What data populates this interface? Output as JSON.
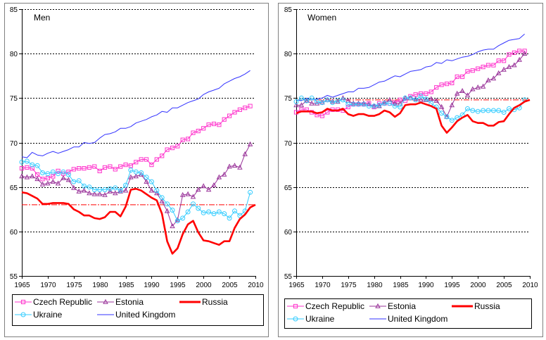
{
  "chart_data": [
    {
      "type": "line",
      "title": "Men",
      "xlabel": "",
      "ylabel": "",
      "xlim": [
        1965,
        2010
      ],
      "ylim": [
        55,
        85
      ],
      "xticks": [
        "1965",
        "1970",
        "1975",
        "1980",
        "1985",
        "1990",
        "1995",
        "2000",
        "2005",
        "2010"
      ],
      "yticks": [
        "55",
        "60",
        "65",
        "70",
        "75",
        "80",
        "85"
      ],
      "grid": "horizontal-dotted",
      "legend_position": "bottom",
      "reference_line": {
        "name": "Russia 2010 level",
        "value": 63.0
      },
      "x": [
        1965,
        1966,
        1967,
        1968,
        1969,
        1970,
        1971,
        1972,
        1973,
        1974,
        1975,
        1976,
        1977,
        1978,
        1979,
        1980,
        1981,
        1982,
        1983,
        1984,
        1985,
        1986,
        1987,
        1988,
        1989,
        1990,
        1991,
        1992,
        1993,
        1994,
        1995,
        1996,
        1997,
        1998,
        1999,
        2000,
        2001,
        2002,
        2003,
        2004,
        2005,
        2006,
        2007,
        2008,
        2009
      ],
      "series": [
        {
          "name": "Czech Republic",
          "color": "#ff33cc",
          "marker": "square",
          "values": [
            67.1,
            67.2,
            67.1,
            66.4,
            65.9,
            66.0,
            66.2,
            66.8,
            66.5,
            66.7,
            67.0,
            67.1,
            67.1,
            67.2,
            67.3,
            66.8,
            67.2,
            67.3,
            67.0,
            67.3,
            67.5,
            67.4,
            67.8,
            68.1,
            68.1,
            67.5,
            68.1,
            68.5,
            69.2,
            69.4,
            69.6,
            70.3,
            70.4,
            71.1,
            71.3,
            71.6,
            72.0,
            72.1,
            72.0,
            72.6,
            73.0,
            73.4,
            73.7,
            73.9,
            74.1
          ]
        },
        {
          "name": "Estonia",
          "color": "#993399",
          "marker": "triangle",
          "values": [
            66.2,
            66.1,
            66.2,
            65.9,
            65.3,
            65.4,
            65.6,
            65.4,
            66.0,
            65.8,
            64.9,
            64.5,
            64.6,
            64.3,
            64.2,
            64.2,
            64.1,
            64.5,
            64.3,
            64.5,
            64.6,
            66.1,
            66.2,
            66.4,
            65.6,
            64.6,
            64.3,
            63.4,
            62.3,
            60.6,
            61.3,
            64.1,
            64.2,
            63.9,
            64.7,
            65.1,
            64.7,
            65.2,
            66.1,
            66.4,
            67.3,
            67.4,
            67.2,
            68.7,
            69.8
          ]
        },
        {
          "name": "Russia",
          "color": "#ff0000",
          "marker": "none",
          "x": [
            1965,
            1966,
            1967,
            1968,
            1969,
            1970,
            1971,
            1972,
            1973,
            1974,
            1975,
            1976,
            1977,
            1978,
            1979,
            1980,
            1981,
            1982,
            1983,
            1984,
            1985,
            1986,
            1987,
            1988,
            1989,
            1990,
            1991,
            1992,
            1993,
            1994,
            1995,
            1996,
            1997,
            1998,
            1999,
            2000,
            2001,
            2002,
            2003,
            2004,
            2005,
            2006,
            2007,
            2008,
            2009,
            2010
          ],
          "values": [
            64.4,
            64.3,
            64.0,
            63.7,
            63.1,
            63.1,
            63.2,
            63.2,
            63.2,
            63.1,
            62.5,
            62.2,
            61.8,
            61.8,
            61.5,
            61.4,
            61.6,
            62.2,
            62.2,
            61.7,
            62.8,
            64.7,
            64.8,
            64.6,
            64.2,
            63.8,
            63.5,
            62.0,
            58.9,
            57.5,
            58.1,
            59.7,
            60.8,
            61.2,
            59.9,
            59.0,
            58.9,
            58.7,
            58.5,
            58.9,
            58.9,
            60.4,
            61.4,
            61.9,
            62.7,
            63.0
          ]
        },
        {
          "name": "Ukraine",
          "color": "#33ccff",
          "marker": "circle",
          "values": [
            67.8,
            67.9,
            67.5,
            67.4,
            66.6,
            66.5,
            66.7,
            66.5,
            66.7,
            66.4,
            65.6,
            65.7,
            65.1,
            65.0,
            64.7,
            64.7,
            64.7,
            64.8,
            64.9,
            64.6,
            65.2,
            66.9,
            66.7,
            66.6,
            66.1,
            65.6,
            64.6,
            63.8,
            63.1,
            62.4,
            61.2,
            61.5,
            62.2,
            63.1,
            62.6,
            62.1,
            62.2,
            62.0,
            62.2,
            62.0,
            61.5,
            62.3,
            61.8,
            62.3,
            64.4
          ]
        },
        {
          "name": "United Kingdom",
          "color": "#3333ff",
          "marker": "none",
          "values": [
            68.4,
            68.3,
            68.9,
            68.6,
            68.5,
            68.8,
            69.0,
            68.8,
            69.0,
            69.2,
            69.5,
            69.5,
            70.0,
            69.9,
            70.0,
            70.5,
            70.9,
            71.0,
            71.2,
            71.6,
            71.6,
            71.8,
            72.2,
            72.4,
            72.6,
            72.9,
            73.1,
            73.5,
            73.4,
            73.9,
            73.9,
            74.2,
            74.5,
            74.7,
            74.9,
            75.4,
            75.7,
            75.9,
            76.1,
            76.6,
            76.9,
            77.2,
            77.4,
            77.7,
            78.1
          ]
        }
      ]
    },
    {
      "type": "line",
      "title": "Women",
      "xlabel": "",
      "ylabel": "",
      "xlim": [
        1965,
        2010
      ],
      "ylim": [
        55,
        85
      ],
      "xticks": [
        "1965",
        "1970",
        "1975",
        "1980",
        "1985",
        "1990",
        "1995",
        "2000",
        "2005",
        "2010"
      ],
      "yticks": [
        "55",
        "60",
        "65",
        "70",
        "75",
        "80",
        "85"
      ],
      "grid": "horizontal-dotted",
      "legend_position": "bottom",
      "reference_line": {
        "name": "Russia 2010 level",
        "value": 74.8
      },
      "x": [
        1965,
        1966,
        1967,
        1968,
        1969,
        1970,
        1971,
        1972,
        1973,
        1974,
        1975,
        1976,
        1977,
        1978,
        1979,
        1980,
        1981,
        1982,
        1983,
        1984,
        1985,
        1986,
        1987,
        1988,
        1989,
        1990,
        1991,
        1992,
        1993,
        1994,
        1995,
        1996,
        1997,
        1998,
        1999,
        2000,
        2001,
        2002,
        2003,
        2004,
        2005,
        2006,
        2007,
        2008,
        2009
      ],
      "series": [
        {
          "name": "Czech Republic",
          "color": "#ff33cc",
          "marker": "square",
          "values": [
            73.4,
            73.7,
            73.7,
            73.4,
            73.1,
            73.0,
            73.4,
            73.7,
            73.7,
            73.6,
            74.0,
            74.3,
            74.3,
            74.3,
            74.4,
            74.0,
            74.4,
            74.4,
            74.4,
            74.5,
            74.8,
            74.7,
            75.2,
            75.4,
            75.5,
            75.5,
            75.7,
            76.2,
            76.5,
            76.6,
            76.7,
            77.4,
            77.4,
            78.0,
            78.1,
            78.3,
            78.5,
            78.7,
            78.7,
            79.2,
            79.2,
            79.9,
            80.1,
            80.3,
            80.3
          ]
        },
        {
          "name": "Estonia",
          "color": "#993399",
          "marker": "triangle",
          "values": [
            74.2,
            74.2,
            74.7,
            74.4,
            74.4,
            74.5,
            74.8,
            74.6,
            74.6,
            75.0,
            74.7,
            74.4,
            74.4,
            74.4,
            74.3,
            74.1,
            74.1,
            74.5,
            74.8,
            74.4,
            74.4,
            75.0,
            75.0,
            74.9,
            74.8,
            74.8,
            74.9,
            74.7,
            74.0,
            72.9,
            74.2,
            75.5,
            75.8,
            75.3,
            76.0,
            76.2,
            76.3,
            77.0,
            77.2,
            77.8,
            78.2,
            78.5,
            78.7,
            79.3,
            80.0
          ]
        },
        {
          "name": "Russia",
          "color": "#ff0000",
          "marker": "none",
          "x": [
            1965,
            1966,
            1967,
            1968,
            1969,
            1970,
            1971,
            1972,
            1973,
            1974,
            1975,
            1976,
            1977,
            1978,
            1979,
            1980,
            1981,
            1982,
            1983,
            1984,
            1985,
            1986,
            1987,
            1988,
            1989,
            1990,
            1991,
            1992,
            1993,
            1994,
            1995,
            1996,
            1997,
            1998,
            1999,
            2000,
            2001,
            2002,
            2003,
            2004,
            2005,
            2006,
            2007,
            2008,
            2009,
            2010
          ],
          "values": [
            73.3,
            73.5,
            73.5,
            73.5,
            73.3,
            73.4,
            73.8,
            73.6,
            73.6,
            73.8,
            73.2,
            73.0,
            73.2,
            73.2,
            73.0,
            73.0,
            73.2,
            73.6,
            73.4,
            72.9,
            73.3,
            74.2,
            74.3,
            74.3,
            74.5,
            74.3,
            74.1,
            73.8,
            71.9,
            71.1,
            71.7,
            72.4,
            72.8,
            73.1,
            72.4,
            72.2,
            72.2,
            71.9,
            71.9,
            72.3,
            72.4,
            73.2,
            73.9,
            74.2,
            74.6,
            74.8
          ]
        },
        {
          "name": "Ukraine",
          "color": "#33ccff",
          "marker": "circle",
          "values": [
            74.6,
            75.0,
            74.7,
            75.0,
            74.6,
            74.5,
            74.8,
            74.5,
            74.7,
            74.8,
            74.3,
            74.3,
            74.3,
            74.3,
            74.1,
            74.1,
            74.2,
            74.4,
            74.4,
            74.1,
            74.0,
            75.0,
            75.0,
            74.8,
            75.2,
            74.9,
            74.4,
            74.0,
            73.3,
            72.9,
            72.5,
            72.8,
            73.1,
            73.8,
            73.6,
            73.5,
            73.6,
            73.6,
            73.6,
            73.6,
            73.4,
            73.8,
            73.7,
            73.9,
            74.8
          ]
        },
        {
          "name": "United Kingdom",
          "color": "#3333ff",
          "marker": "none",
          "values": [
            74.8,
            74.7,
            75.0,
            74.8,
            74.9,
            75.0,
            75.3,
            75.1,
            75.3,
            75.5,
            75.7,
            75.7,
            76.1,
            76.1,
            76.2,
            76.5,
            76.8,
            76.9,
            77.2,
            77.5,
            77.4,
            77.7,
            78.0,
            78.1,
            78.2,
            78.5,
            78.6,
            79.0,
            78.9,
            79.3,
            79.2,
            79.4,
            79.6,
            79.7,
            79.9,
            80.2,
            80.4,
            80.5,
            80.5,
            80.9,
            81.2,
            81.5,
            81.6,
            81.7,
            82.2
          ]
        }
      ]
    }
  ]
}
